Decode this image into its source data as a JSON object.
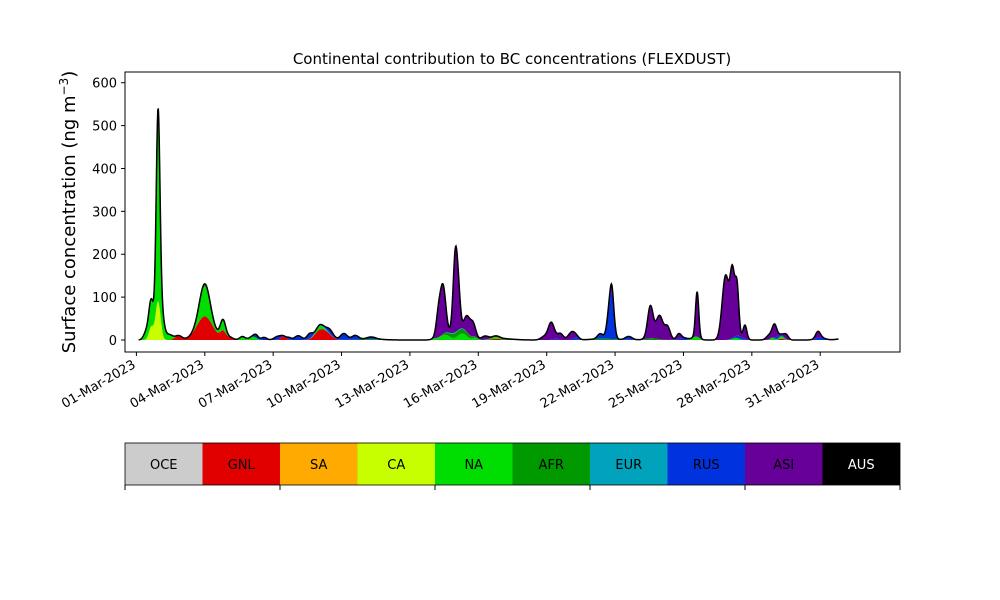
{
  "chart_data": {
    "type": "area",
    "stacked": true,
    "title": "Continental contribution to BC concentrations (FLEXDUST)",
    "xlabel": "",
    "ylabel": "Surface concentration (ng m",
    "ylabel_sup": "−3",
    "ylabel_tail": ")",
    "ylim": [
      -28,
      625
    ],
    "xlim_days": [
      -0.5,
      33.5
    ],
    "x_start": "01-Mar-2023",
    "x_end": "31-Mar-2023",
    "xtick_labels": [
      "01-Mar-2023",
      "04-Mar-2023",
      "07-Mar-2023",
      "10-Mar-2023",
      "13-Mar-2023",
      "16-Mar-2023",
      "19-Mar-2023",
      "22-Mar-2023",
      "25-Mar-2023",
      "28-Mar-2023",
      "31-Mar-2023"
    ],
    "yticks": [
      0,
      100,
      200,
      300,
      400,
      500,
      600
    ],
    "grid": false,
    "legend_position": "bottom",
    "series_order": [
      "GNL",
      "SA",
      "CA",
      "NA",
      "AFR",
      "EUR",
      "RUS",
      "ASI",
      "AUS",
      "OCE"
    ],
    "series": [
      {
        "name": "OCE",
        "color": "#cccccc",
        "text_color": "#000000",
        "events": []
      },
      {
        "name": "GNL",
        "color": "#e00000",
        "text_color": "#000000",
        "events": [
          [
            1.85,
            0.15,
            10
          ],
          [
            3.0,
            0.35,
            55
          ],
          [
            3.8,
            0.12,
            18
          ],
          [
            4.1,
            0.15,
            6
          ],
          [
            6.45,
            0.12,
            8
          ],
          [
            8.05,
            0.22,
            22
          ],
          [
            8.4,
            0.2,
            12
          ],
          [
            15.8,
            0.2,
            3
          ],
          [
            28.3,
            0.1,
            3
          ]
        ]
      },
      {
        "name": "SA",
        "color": "#ffaa00",
        "text_color": "#000000",
        "events": []
      },
      {
        "name": "CA",
        "color": "#c8ff00",
        "text_color": "#000000",
        "events": [
          [
            0.65,
            0.1,
            30
          ],
          [
            0.95,
            0.11,
            90
          ]
        ]
      },
      {
        "name": "NA",
        "color": "#00dd00",
        "text_color": "#000000",
        "events": [
          [
            0.45,
            0.12,
            20
          ],
          [
            0.65,
            0.1,
            55
          ],
          [
            0.95,
            0.08,
            420
          ],
          [
            1.1,
            0.12,
            50
          ],
          [
            1.45,
            0.15,
            12
          ],
          [
            3.0,
            0.22,
            70
          ],
          [
            3.8,
            0.12,
            25
          ],
          [
            4.65,
            0.12,
            8
          ],
          [
            5.1,
            0.15,
            8
          ],
          [
            8.05,
            0.15,
            8
          ],
          [
            13.1,
            0.15,
            3
          ],
          [
            13.55,
            0.2,
            12
          ],
          [
            14.3,
            0.2,
            15
          ],
          [
            14.85,
            0.1,
            5
          ],
          [
            15.75,
            0.15,
            4
          ],
          [
            24.55,
            0.15,
            8
          ],
          [
            26.3,
            0.15,
            5
          ],
          [
            27.9,
            0.1,
            5
          ],
          [
            28.3,
            0.12,
            6
          ]
        ]
      },
      {
        "name": "AFR",
        "color": "#009900",
        "text_color": "#000000",
        "events": [
          [
            0.9,
            0.2,
            8
          ],
          [
            3.0,
            0.3,
            6
          ],
          [
            10.3,
            0.5,
            2
          ],
          [
            13.9,
            0.3,
            8
          ],
          [
            14.4,
            0.3,
            8
          ],
          [
            16.0,
            0.5,
            3
          ],
          [
            20.5,
            0.5,
            3
          ],
          [
            22.6,
            0.3,
            4
          ]
        ]
      },
      {
        "name": "EUR",
        "color": "#00a3bb",
        "text_color": "#000000",
        "events": [
          [
            8.1,
            0.3,
            3
          ],
          [
            14.0,
            0.3,
            2
          ]
        ]
      },
      {
        "name": "RUS",
        "color": "#0033dd",
        "text_color": "#000000",
        "events": [
          [
            5.25,
            0.1,
            8
          ],
          [
            5.6,
            0.12,
            6
          ],
          [
            6.2,
            0.15,
            8
          ],
          [
            6.7,
            0.1,
            5
          ],
          [
            7.1,
            0.15,
            10
          ],
          [
            7.6,
            0.12,
            12
          ],
          [
            8.5,
            0.15,
            10
          ],
          [
            9.1,
            0.15,
            15
          ],
          [
            9.6,
            0.15,
            10
          ],
          [
            10.3,
            0.2,
            5
          ],
          [
            18.4,
            0.1,
            3
          ],
          [
            19.3,
            0.12,
            6
          ],
          [
            20.8,
            0.12,
            95
          ],
          [
            20.9,
            0.08,
            25
          ],
          [
            20.35,
            0.12,
            12
          ],
          [
            21.6,
            0.15,
            8
          ],
          [
            24.0,
            0.2,
            5
          ],
          [
            26.45,
            0.2,
            6
          ],
          [
            28.15,
            0.15,
            5
          ],
          [
            30.0,
            0.2,
            6
          ],
          [
            31.1,
            0.3,
            4
          ]
        ]
      },
      {
        "name": "ASI",
        "color": "#660099",
        "text_color": "#000000",
        "events": [
          [
            13.45,
            0.12,
            110
          ],
          [
            13.25,
            0.1,
            50
          ],
          [
            14.0,
            0.1,
            190
          ],
          [
            14.15,
            0.08,
            50
          ],
          [
            14.5,
            0.12,
            35
          ],
          [
            14.75,
            0.12,
            32
          ],
          [
            15.3,
            0.15,
            8
          ],
          [
            17.9,
            0.15,
            8
          ],
          [
            18.2,
            0.13,
            40
          ],
          [
            18.6,
            0.12,
            15
          ],
          [
            19.1,
            0.15,
            18
          ],
          [
            20.85,
            0.06,
            20
          ],
          [
            22.55,
            0.12,
            75
          ],
          [
            22.95,
            0.15,
            55
          ],
          [
            23.3,
            0.12,
            30
          ],
          [
            23.8,
            0.1,
            12
          ],
          [
            24.6,
            0.07,
            105
          ],
          [
            25.85,
            0.15,
            150
          ],
          [
            26.15,
            0.1,
            145
          ],
          [
            26.35,
            0.08,
            110
          ],
          [
            26.7,
            0.08,
            32
          ],
          [
            27.75,
            0.12,
            10
          ],
          [
            28.0,
            0.1,
            30
          ],
          [
            28.5,
            0.1,
            12
          ],
          [
            29.9,
            0.1,
            15
          ]
        ]
      },
      {
        "name": "AUS",
        "color": "#000000",
        "text_color": "#ffffff",
        "events": []
      }
    ]
  }
}
